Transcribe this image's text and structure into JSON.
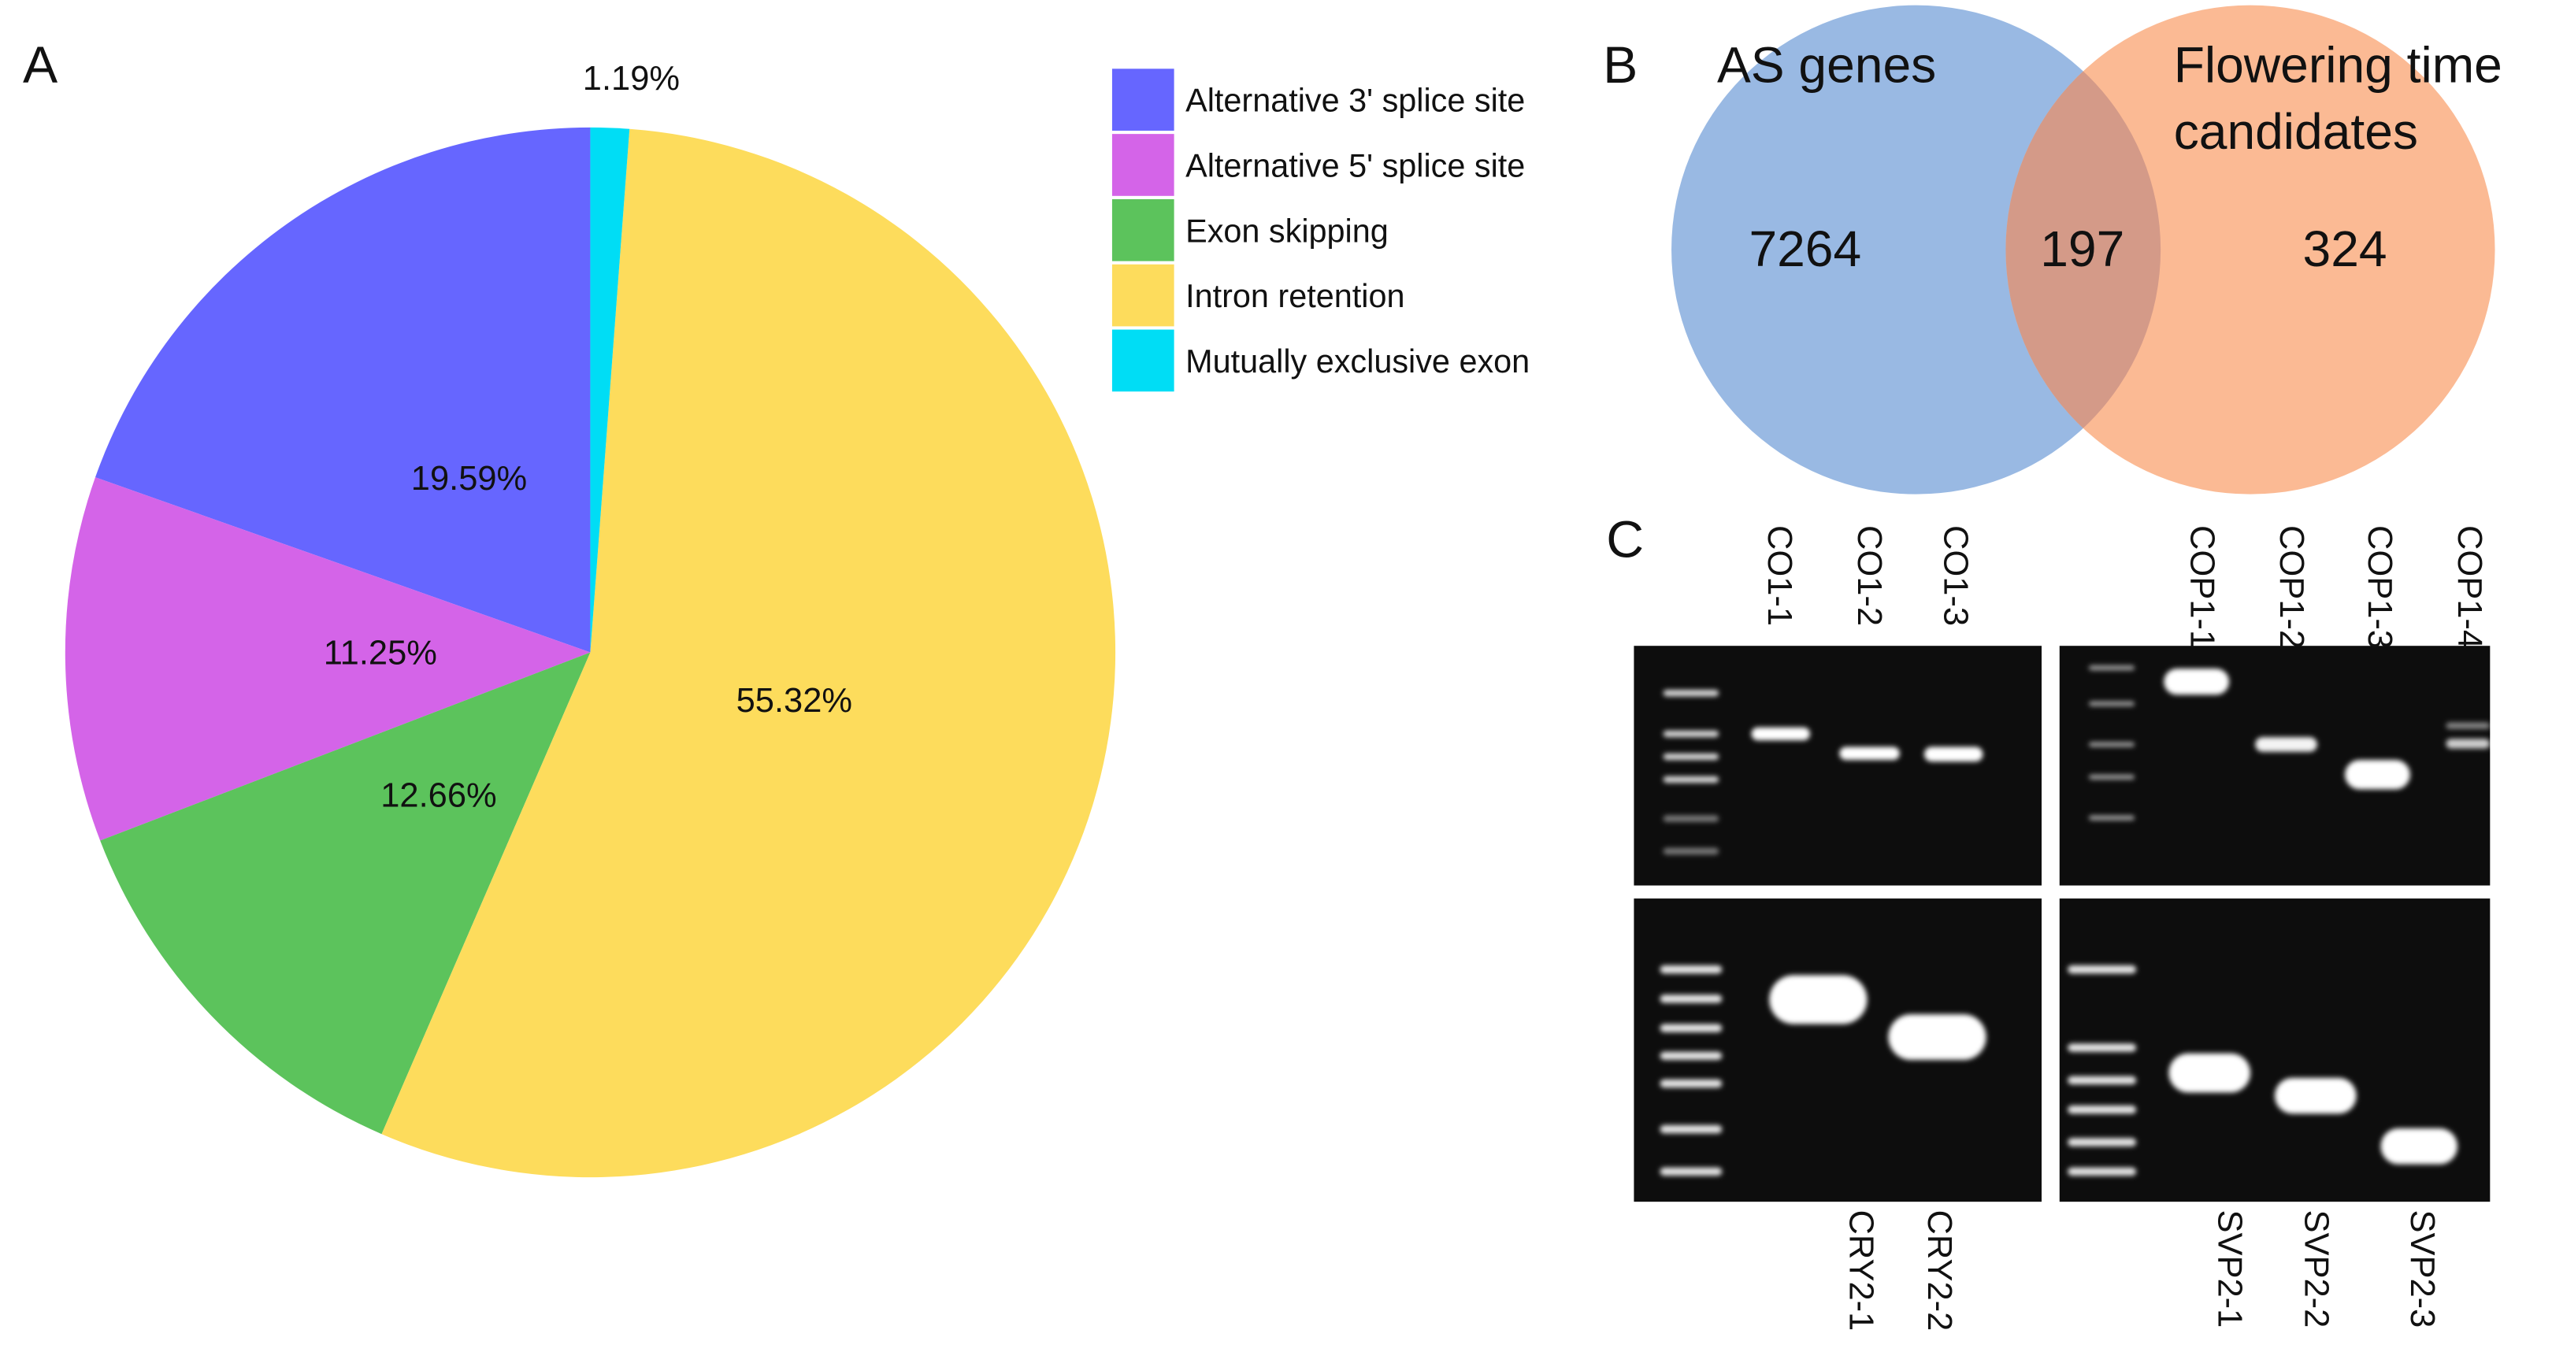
{
  "chart_data": [
    {
      "type": "pie",
      "panel": "A",
      "categories": [
        "Alternative 3' splice site",
        "Alternative 5' splice site",
        "Exon skipping",
        "Intron retention",
        "Mutually exclusive exon"
      ],
      "values": [
        19.59,
        11.25,
        12.66,
        55.32,
        1.19
      ],
      "value_labels": [
        "19.59%",
        "11.25%",
        "12.66%",
        "55.32%",
        "1.19%"
      ],
      "colors": [
        "#6666ff",
        "#d464e8",
        "#5cc35c",
        "#fddc5c",
        "#00ddf5"
      ],
      "direction": "counterclockwise",
      "legend": "right"
    },
    {
      "type": "venn",
      "panel": "B",
      "sets": [
        {
          "name": [
            "AS genes"
          ],
          "color": "#99b9e3",
          "value": 7264
        },
        {
          "name": [
            "Flowering time",
            "candidates"
          ],
          "color": "#fbba94",
          "value": 324
        }
      ],
      "overlap": {
        "color": "#d49a88",
        "value": 197
      }
    }
  ],
  "gel": {
    "panel": "C",
    "top_lanes": [
      "CO1-1",
      "CO1-2",
      "CO1-3",
      "COP1-1",
      "COP1-2",
      "COP1-3",
      "COP1-4"
    ],
    "bottom_lanes": [
      "CRY2-1",
      "CRY2-2",
      "SVP2-1",
      "SVP2-2",
      "SVP2-3"
    ]
  }
}
